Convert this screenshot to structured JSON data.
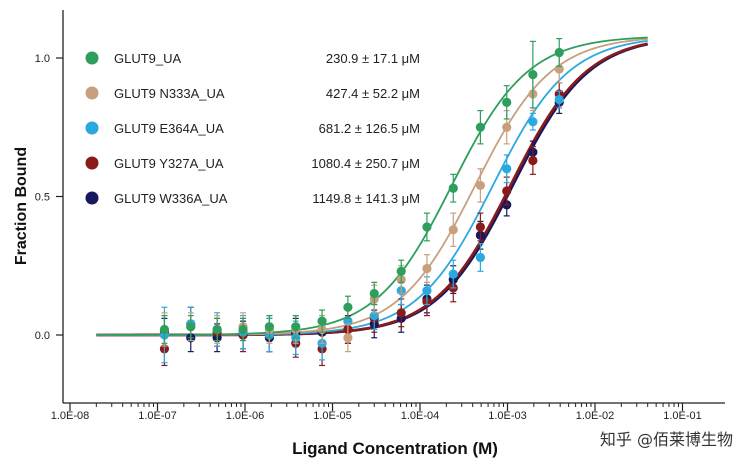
{
  "chart_data": {
    "type": "scatter",
    "xlabel": "Ligand Concentration (M)",
    "ylabel": "Fraction Bound",
    "xscale": "log",
    "xlim": [
      5e-09,
      0.1
    ],
    "ylim": [
      -0.3,
      1.15
    ],
    "x_ticks": [
      {
        "value": 1e-08,
        "label": "1.0E-08"
      },
      {
        "value": 1e-07,
        "label": "1.0E-07"
      },
      {
        "value": 1e-06,
        "label": "1.0E-06"
      },
      {
        "value": 1e-05,
        "label": "1.0E-05"
      },
      {
        "value": 0.0001,
        "label": "1.0E-04"
      },
      {
        "value": 0.001,
        "label": "1.0E-03"
      },
      {
        "value": 0.01,
        "label": "1.0E-02"
      },
      {
        "value": 0.1,
        "label": "1.0E-01"
      }
    ],
    "y_ticks": [
      {
        "value": 0.0,
        "label": "0.0"
      },
      {
        "value": 0.5,
        "label": "0.5"
      },
      {
        "value": 1.0,
        "label": "1.0"
      }
    ],
    "legend_position": "top-left",
    "grid": false,
    "series": [
      {
        "name": "GLUT9_UA",
        "kd": "230.9 ± 17.1 μM",
        "kd_value": 0.0002309,
        "color": "#2e9e5c",
        "points": [
          {
            "x": 1.2e-07,
            "y": 0.02,
            "err": 0.05
          },
          {
            "x": 2.4e-07,
            "y": 0.03,
            "err": 0.04
          },
          {
            "x": 4.8e-07,
            "y": 0.02,
            "err": 0.04
          },
          {
            "x": 9.5e-07,
            "y": 0.02,
            "err": 0.04
          },
          {
            "x": 1.9e-06,
            "y": 0.03,
            "err": 0.04
          },
          {
            "x": 3.8e-06,
            "y": 0.03,
            "err": 0.04
          },
          {
            "x": 7.6e-06,
            "y": 0.05,
            "err": 0.04
          },
          {
            "x": 1.5e-05,
            "y": 0.1,
            "err": 0.04
          },
          {
            "x": 3e-05,
            "y": 0.15,
            "err": 0.04
          },
          {
            "x": 6.1e-05,
            "y": 0.23,
            "err": 0.04
          },
          {
            "x": 0.00012,
            "y": 0.39,
            "err": 0.05
          },
          {
            "x": 0.00024,
            "y": 0.53,
            "err": 0.05
          },
          {
            "x": 0.00049,
            "y": 0.75,
            "err": 0.06
          },
          {
            "x": 0.00098,
            "y": 0.84,
            "err": 0.06
          },
          {
            "x": 0.00195,
            "y": 0.94,
            "err": 0.12
          },
          {
            "x": 0.0039,
            "y": 1.02,
            "err": 0.05
          }
        ]
      },
      {
        "name": "GLUT9 N333A_UA",
        "kd": "427.4 ± 52.2 μM",
        "kd_value": 0.0004274,
        "color": "#c8a07e",
        "points": [
          {
            "x": 1.2e-07,
            "y": 0.02,
            "err": 0.06
          },
          {
            "x": 2.4e-07,
            "y": 0.03,
            "err": 0.05
          },
          {
            "x": 4.8e-07,
            "y": 0.02,
            "err": 0.05
          },
          {
            "x": 9.5e-07,
            "y": 0.03,
            "err": 0.05
          },
          {
            "x": 1.9e-06,
            "y": 0.02,
            "err": 0.05
          },
          {
            "x": 3.8e-06,
            "y": 0.02,
            "err": 0.05
          },
          {
            "x": 7.6e-06,
            "y": 0.02,
            "err": 0.05
          },
          {
            "x": 1.5e-05,
            "y": -0.01,
            "err": 0.05
          },
          {
            "x": 3e-05,
            "y": 0.13,
            "err": 0.05
          },
          {
            "x": 6.1e-05,
            "y": 0.2,
            "err": 0.05
          },
          {
            "x": 0.00012,
            "y": 0.24,
            "err": 0.05
          },
          {
            "x": 0.00024,
            "y": 0.38,
            "err": 0.06
          },
          {
            "x": 0.00049,
            "y": 0.54,
            "err": 0.06
          },
          {
            "x": 0.00098,
            "y": 0.75,
            "err": 0.06
          },
          {
            "x": 0.00195,
            "y": 0.87,
            "err": 0.06
          },
          {
            "x": 0.0039,
            "y": 0.96,
            "err": 0.05
          }
        ]
      },
      {
        "name": "GLUT9 E364A_UA",
        "kd": "681.2 ± 126.5 μM",
        "kd_value": 0.0006812,
        "color": "#2aa9e0",
        "points": [
          {
            "x": 1.2e-07,
            "y": 0.0,
            "err": 0.1
          },
          {
            "x": 2.4e-07,
            "y": 0.04,
            "err": 0.06
          },
          {
            "x": 4.8e-07,
            "y": 0.02,
            "err": 0.06
          },
          {
            "x": 9.5e-07,
            "y": 0.01,
            "err": 0.06
          },
          {
            "x": 1.9e-06,
            "y": 0.0,
            "err": 0.06
          },
          {
            "x": 3.8e-06,
            "y": -0.01,
            "err": 0.06
          },
          {
            "x": 7.6e-06,
            "y": -0.03,
            "err": 0.06
          },
          {
            "x": 1.5e-05,
            "y": 0.05,
            "err": 0.05
          },
          {
            "x": 3e-05,
            "y": 0.07,
            "err": 0.05
          },
          {
            "x": 6.1e-05,
            "y": 0.16,
            "err": 0.05
          },
          {
            "x": 0.00012,
            "y": 0.16,
            "err": 0.05
          },
          {
            "x": 0.00024,
            "y": 0.22,
            "err": 0.05
          },
          {
            "x": 0.00049,
            "y": 0.28,
            "err": 0.05
          },
          {
            "x": 0.00098,
            "y": 0.6,
            "err": 0.05
          },
          {
            "x": 0.00195,
            "y": 0.77,
            "err": 0.03
          },
          {
            "x": 0.0039,
            "y": 0.85,
            "err": 0.03
          }
        ]
      },
      {
        "name": "GLUT9 Y327A_UA",
        "kd": "1080.4 ± 250.7 μM",
        "kd_value": 0.0010804,
        "color": "#8b1a1a",
        "points": [
          {
            "x": 1.2e-07,
            "y": -0.05,
            "err": 0.06
          },
          {
            "x": 2.4e-07,
            "y": 0.04,
            "err": 0.06
          },
          {
            "x": 4.8e-07,
            "y": 0.01,
            "err": 0.05
          },
          {
            "x": 9.5e-07,
            "y": 0.0,
            "err": 0.06
          },
          {
            "x": 1.9e-06,
            "y": 0.0,
            "err": 0.06
          },
          {
            "x": 3.8e-06,
            "y": -0.03,
            "err": 0.05
          },
          {
            "x": 7.6e-06,
            "y": -0.05,
            "err": 0.06
          },
          {
            "x": 1.5e-05,
            "y": 0.02,
            "err": 0.05
          },
          {
            "x": 3e-05,
            "y": 0.06,
            "err": 0.05
          },
          {
            "x": 6.1e-05,
            "y": 0.08,
            "err": 0.05
          },
          {
            "x": 0.00012,
            "y": 0.12,
            "err": 0.05
          },
          {
            "x": 0.00024,
            "y": 0.17,
            "err": 0.05
          },
          {
            "x": 0.00049,
            "y": 0.39,
            "err": 0.05
          },
          {
            "x": 0.00098,
            "y": 0.52,
            "err": 0.05
          },
          {
            "x": 0.00195,
            "y": 0.63,
            "err": 0.05
          },
          {
            "x": 0.0039,
            "y": 0.87,
            "err": 0.04
          }
        ]
      },
      {
        "name": "GLUT9 W336A_UA",
        "kd": "1149.8 ± 141.3 μM",
        "kd_value": 0.0011498,
        "color": "#16195e",
        "points": [
          {
            "x": 1.2e-07,
            "y": 0.01,
            "err": 0.05
          },
          {
            "x": 2.4e-07,
            "y": -0.01,
            "err": 0.05
          },
          {
            "x": 4.8e-07,
            "y": -0.01,
            "err": 0.05
          },
          {
            "x": 9.5e-07,
            "y": 0.0,
            "err": 0.05
          },
          {
            "x": 1.9e-06,
            "y": -0.01,
            "err": 0.05
          },
          {
            "x": 3.8e-06,
            "y": 0.01,
            "err": 0.05
          },
          {
            "x": 7.6e-06,
            "y": 0.01,
            "err": 0.05
          },
          {
            "x": 1.5e-05,
            "y": 0.02,
            "err": 0.05
          },
          {
            "x": 3e-05,
            "y": 0.04,
            "err": 0.05
          },
          {
            "x": 6.1e-05,
            "y": 0.06,
            "err": 0.05
          },
          {
            "x": 0.00012,
            "y": 0.13,
            "err": 0.05
          },
          {
            "x": 0.00024,
            "y": 0.2,
            "err": 0.05
          },
          {
            "x": 0.00049,
            "y": 0.36,
            "err": 0.05
          },
          {
            "x": 0.00098,
            "y": 0.47,
            "err": 0.04
          },
          {
            "x": 0.00195,
            "y": 0.66,
            "err": 0.04
          },
          {
            "x": 0.0039,
            "y": 0.84,
            "err": 0.04
          }
        ]
      }
    ]
  },
  "watermark": "知乎 @佰莱博生物"
}
